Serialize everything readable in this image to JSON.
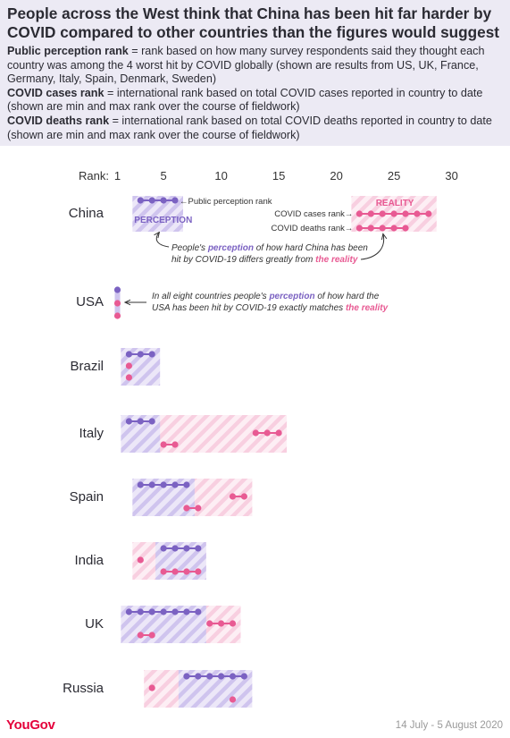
{
  "title": "People across the West think that China has been hit far harder by COVID compared to other countries than the figures would suggest",
  "notes": [
    {
      "term": "Public perception rank",
      "text": " = rank based on how many survey respondents said they thought each country was among the 4 worst hit by COVID globally (shown are results from US, UK, France, Germany, Italy, Spain, Denmark, Sweden)"
    },
    {
      "term": "COVID cases rank",
      "text": " = international rank based on total COVID cases reported in country to date (shown are min and max rank over the course of fieldwork)"
    },
    {
      "term": "COVID deaths rank",
      "text": " = international rank based on total COVID deaths reported in country to date (shown are min and max rank over the course of fieldwork)"
    }
  ],
  "footer": {
    "logo": "YouGov",
    "date": "14 July - 5 August 2020"
  },
  "colors": {
    "perception": "#7b62c2",
    "reality": "#e85a93",
    "perception_fill": "#dcd3f1",
    "reality_fill": "#fbdbe8",
    "header_bg": "#eceaf4"
  },
  "chart_data": {
    "type": "dumbbell-range",
    "axis_label": "Rank:",
    "ticks": [
      1,
      5,
      10,
      15,
      20,
      25,
      30
    ],
    "xlim": [
      1,
      30
    ],
    "series": [
      "Public perception rank",
      "COVID cases rank",
      "COVID deaths rank"
    ],
    "countries": [
      {
        "name": "China",
        "perception": [
          3,
          6
        ],
        "cases": [
          22,
          28
        ],
        "deaths": [
          22,
          26
        ]
      },
      {
        "name": "USA",
        "perception": [
          1,
          1
        ],
        "cases": [
          1,
          1
        ],
        "deaths": [
          1,
          1
        ]
      },
      {
        "name": "Brazil",
        "perception": [
          2,
          4
        ],
        "cases": [
          2,
          2
        ],
        "deaths": [
          2,
          2
        ]
      },
      {
        "name": "Italy",
        "perception": [
          2,
          4
        ],
        "cases": [
          13,
          15
        ],
        "deaths": [
          5,
          6
        ]
      },
      {
        "name": "Spain",
        "perception": [
          3,
          7
        ],
        "cases": [
          11,
          12
        ],
        "deaths": [
          7,
          8
        ]
      },
      {
        "name": "India",
        "perception": [
          5,
          8
        ],
        "cases": [
          3,
          3
        ],
        "deaths": [
          5,
          8
        ]
      },
      {
        "name": "UK",
        "perception": [
          2,
          8
        ],
        "cases": [
          9,
          11
        ],
        "deaths": [
          3,
          4
        ]
      },
      {
        "name": "Russia",
        "perception": [
          7,
          12
        ],
        "cases": [
          4,
          4
        ],
        "deaths": [
          11,
          11
        ]
      }
    ],
    "annotations": {
      "perception_marker": "←Public perception rank",
      "perception_box_label": "PERCEPTION",
      "reality_box_label": "REALITY",
      "cases_marker": "COVID cases rank→",
      "deaths_marker": "COVID deaths rank→",
      "china_note_1": "People's ",
      "china_note_kw1": "perception",
      "china_note_2": " of how hard China has been",
      "china_note_3": "hit by COVID-19 differs greatly from ",
      "china_note_kw2": "the reality",
      "usa_note_1": "In all eight countries people's ",
      "usa_note_kw1": "perception",
      "usa_note_2": " of how hard the",
      "usa_note_3": "USA has been hit by COVID-19 exactly matches ",
      "usa_note_kw2": "the reality"
    }
  }
}
